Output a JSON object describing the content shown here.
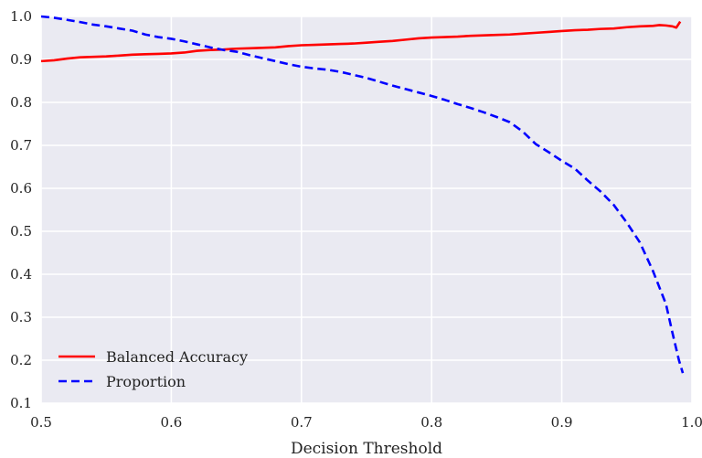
{
  "chart_data": {
    "type": "line",
    "title": "",
    "xlabel": "Decision  Threshold",
    "ylabel": "",
    "xlim": [
      0.5,
      1.0
    ],
    "ylim": [
      0.1,
      1.0
    ],
    "x_ticks": [
      "0.5",
      "0.6",
      "0.7",
      "0.8",
      "0.9",
      "1.0"
    ],
    "y_ticks": [
      "0.1",
      "0.2",
      "0.3",
      "0.4",
      "0.5",
      "0.6",
      "0.7",
      "0.8",
      "0.9",
      "1.0"
    ],
    "x_tick_values": [
      0.5,
      0.6,
      0.7,
      0.8,
      0.9,
      1.0
    ],
    "y_tick_values": [
      0.1,
      0.2,
      0.3,
      0.4,
      0.5,
      0.6,
      0.7,
      0.8,
      0.9,
      1.0
    ],
    "grid": true,
    "legend_position": "bottom-left",
    "background_color": "#eaeaf2",
    "grid_color": "#ffffff",
    "series": [
      {
        "name": "Balanced Accuracy",
        "color": "#ff0000",
        "dash": "solid",
        "points": [
          [
            0.5,
            0.896
          ],
          [
            0.51,
            0.898
          ],
          [
            0.52,
            0.902
          ],
          [
            0.53,
            0.905
          ],
          [
            0.54,
            0.906
          ],
          [
            0.55,
            0.907
          ],
          [
            0.56,
            0.909
          ],
          [
            0.57,
            0.911
          ],
          [
            0.58,
            0.912
          ],
          [
            0.59,
            0.913
          ],
          [
            0.6,
            0.914
          ],
          [
            0.61,
            0.916
          ],
          [
            0.62,
            0.92
          ],
          [
            0.63,
            0.922
          ],
          [
            0.64,
            0.923
          ],
          [
            0.65,
            0.925
          ],
          [
            0.66,
            0.926
          ],
          [
            0.67,
            0.927
          ],
          [
            0.68,
            0.928
          ],
          [
            0.69,
            0.931
          ],
          [
            0.7,
            0.933
          ],
          [
            0.71,
            0.934
          ],
          [
            0.72,
            0.935
          ],
          [
            0.73,
            0.936
          ],
          [
            0.74,
            0.937
          ],
          [
            0.75,
            0.939
          ],
          [
            0.76,
            0.941
          ],
          [
            0.77,
            0.943
          ],
          [
            0.78,
            0.946
          ],
          [
            0.79,
            0.949
          ],
          [
            0.8,
            0.951
          ],
          [
            0.81,
            0.952
          ],
          [
            0.82,
            0.953
          ],
          [
            0.83,
            0.955
          ],
          [
            0.84,
            0.956
          ],
          [
            0.85,
            0.957
          ],
          [
            0.86,
            0.958
          ],
          [
            0.87,
            0.96
          ],
          [
            0.88,
            0.962
          ],
          [
            0.89,
            0.964
          ],
          [
            0.9,
            0.966
          ],
          [
            0.91,
            0.968
          ],
          [
            0.92,
            0.969
          ],
          [
            0.93,
            0.971
          ],
          [
            0.94,
            0.972
          ],
          [
            0.95,
            0.975
          ],
          [
            0.96,
            0.977
          ],
          [
            0.97,
            0.978
          ],
          [
            0.975,
            0.98
          ],
          [
            0.98,
            0.979
          ],
          [
            0.985,
            0.977
          ],
          [
            0.988,
            0.974
          ],
          [
            0.991,
            0.988
          ]
        ]
      },
      {
        "name": "Proportion",
        "color": "#0000ff",
        "dash": "dashed",
        "points": [
          [
            0.5,
            1.0
          ],
          [
            0.51,
            0.997
          ],
          [
            0.52,
            0.992
          ],
          [
            0.53,
            0.987
          ],
          [
            0.54,
            0.981
          ],
          [
            0.55,
            0.977
          ],
          [
            0.56,
            0.972
          ],
          [
            0.57,
            0.967
          ],
          [
            0.58,
            0.958
          ],
          [
            0.59,
            0.952
          ],
          [
            0.6,
            0.948
          ],
          [
            0.61,
            0.942
          ],
          [
            0.62,
            0.935
          ],
          [
            0.63,
            0.928
          ],
          [
            0.64,
            0.922
          ],
          [
            0.65,
            0.918
          ],
          [
            0.66,
            0.91
          ],
          [
            0.67,
            0.903
          ],
          [
            0.68,
            0.896
          ],
          [
            0.69,
            0.889
          ],
          [
            0.7,
            0.883
          ],
          [
            0.71,
            0.879
          ],
          [
            0.72,
            0.876
          ],
          [
            0.73,
            0.871
          ],
          [
            0.74,
            0.864
          ],
          [
            0.75,
            0.857
          ],
          [
            0.76,
            0.848
          ],
          [
            0.77,
            0.839
          ],
          [
            0.78,
            0.831
          ],
          [
            0.79,
            0.823
          ],
          [
            0.8,
            0.815
          ],
          [
            0.81,
            0.806
          ],
          [
            0.82,
            0.796
          ],
          [
            0.83,
            0.787
          ],
          [
            0.84,
            0.777
          ],
          [
            0.85,
            0.766
          ],
          [
            0.86,
            0.754
          ],
          [
            0.87,
            0.732
          ],
          [
            0.88,
            0.703
          ],
          [
            0.89,
            0.684
          ],
          [
            0.9,
            0.664
          ],
          [
            0.91,
            0.646
          ],
          [
            0.92,
            0.618
          ],
          [
            0.93,
            0.592
          ],
          [
            0.94,
            0.561
          ],
          [
            0.95,
            0.52
          ],
          [
            0.96,
            0.474
          ],
          [
            0.97,
            0.408
          ],
          [
            0.98,
            0.331
          ],
          [
            0.985,
            0.264
          ],
          [
            0.99,
            0.2
          ],
          [
            0.993,
            0.17
          ]
        ]
      }
    ]
  }
}
